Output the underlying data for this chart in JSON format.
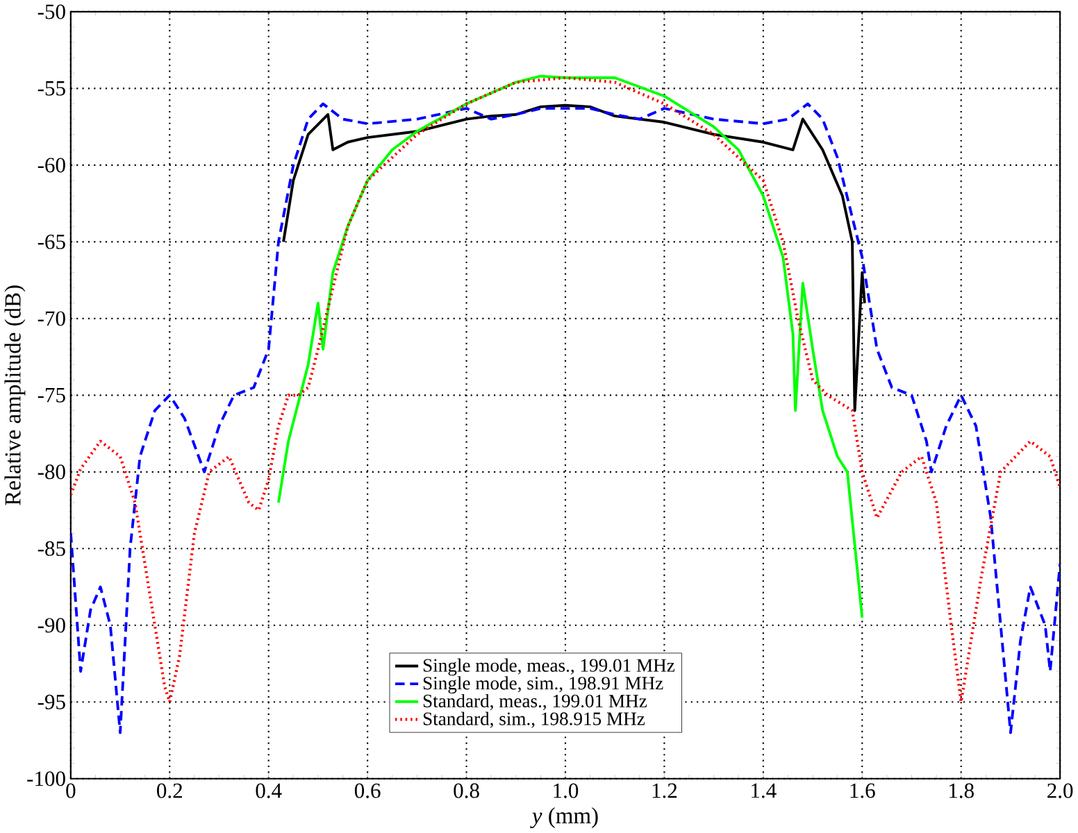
{
  "chart_data": {
    "type": "line",
    "xlabel": "*y* (mm)",
    "ylabel": "Relative amplitude (dB)",
    "xlim": [
      0,
      2.0
    ],
    "ylim": [
      -100,
      -50
    ],
    "xticks": [
      0,
      {
        "value": 0.2,
        "label": "0.2"
      },
      {
        "value": 0.4,
        "label": "0.4"
      },
      {
        "value": 0.6,
        "label": "0.6"
      },
      {
        "value": 0.8,
        "label": "0.8"
      },
      {
        "value": 1.0,
        "label": "1.0"
      },
      {
        "value": 1.2,
        "label": "1.2"
      },
      {
        "value": 1.4,
        "label": "1.4"
      },
      {
        "value": 1.6,
        "label": "1.6"
      },
      {
        "value": 1.8,
        "label": "1.8"
      },
      {
        "value": 2.0,
        "label": "2.0"
      }
    ],
    "yticks": [
      -100,
      -95,
      -90,
      -85,
      -80,
      -75,
      -70,
      -65,
      -60,
      -55,
      -50
    ],
    "grid": true,
    "legend": "bottom",
    "marker": "none",
    "series": [
      {
        "name": "Single mode, meas., 199.01 MHz",
        "color": "#000000",
        "line_style": "solid",
        "x": [
          0.43,
          0.45,
          0.48,
          0.52,
          0.53,
          0.56,
          0.6,
          0.7,
          0.8,
          0.85,
          0.9,
          0.95,
          1.0,
          1.05,
          1.1,
          1.2,
          1.3,
          1.4,
          1.46,
          1.48,
          1.52,
          1.56,
          1.58,
          1.585,
          1.6,
          1.605
        ],
        "values": [
          -65,
          -61,
          -58,
          -56.7,
          -59,
          -58.5,
          -58.2,
          -57.8,
          -57,
          -56.8,
          -56.7,
          -56.2,
          -56.1,
          -56.2,
          -56.8,
          -57.2,
          -58,
          -58.5,
          -59,
          -57,
          -59,
          -62,
          -65,
          -76,
          -67,
          -69
        ]
      },
      {
        "name": "Single mode, sim., 198.91 MHz",
        "color": "#0000ff",
        "line_style": "dashed",
        "x": [
          0,
          0.02,
          0.04,
          0.06,
          0.08,
          0.1,
          0.12,
          0.14,
          0.17,
          0.2,
          0.23,
          0.27,
          0.3,
          0.33,
          0.37,
          0.4,
          0.42,
          0.45,
          0.48,
          0.51,
          0.55,
          0.6,
          0.7,
          0.8,
          0.85,
          0.9,
          0.95,
          1.0,
          1.05,
          1.1,
          1.15,
          1.2,
          1.3,
          1.4,
          1.45,
          1.49,
          1.52,
          1.55,
          1.6,
          1.63,
          1.66,
          1.7,
          1.73,
          1.74,
          1.77,
          1.8,
          1.83,
          1.86,
          1.9,
          1.92,
          1.94,
          1.97,
          1.98,
          2.0
        ],
        "values": [
          -84,
          -93,
          -89,
          -87.5,
          -90,
          -97,
          -85,
          -79,
          -76,
          -75,
          -76.5,
          -80,
          -77,
          -75,
          -74.5,
          -72,
          -65,
          -60,
          -57,
          -56,
          -57,
          -57.3,
          -57,
          -56.3,
          -57,
          -56.7,
          -56.3,
          -56.3,
          -56.3,
          -56.7,
          -57,
          -56.3,
          -57,
          -57.3,
          -57,
          -56,
          -57,
          -59.5,
          -66,
          -72,
          -74.5,
          -75,
          -78,
          -80,
          -77,
          -75,
          -77,
          -83,
          -97,
          -91,
          -87.5,
          -90,
          -93,
          -86
        ]
      },
      {
        "name": "Standard, meas., 199.01 MHz",
        "color": "#00ff00",
        "line_style": "solid",
        "x": [
          0.42,
          0.44,
          0.48,
          0.5,
          0.51,
          0.53,
          0.56,
          0.6,
          0.65,
          0.7,
          0.8,
          0.9,
          0.95,
          1.0,
          1.05,
          1.1,
          1.2,
          1.3,
          1.35,
          1.4,
          1.44,
          1.46,
          1.465,
          1.48,
          1.5,
          1.52,
          1.55,
          1.57,
          1.6
        ],
        "values": [
          -82,
          -78,
          -73,
          -69,
          -72,
          -67,
          -64,
          -61,
          -59,
          -57.8,
          -56,
          -54.6,
          -54.2,
          -54.3,
          -54.3,
          -54.3,
          -55.5,
          -57.5,
          -59,
          -62,
          -66,
          -71,
          -76,
          -67.7,
          -72,
          -76,
          -79,
          -80,
          -89.5
        ]
      },
      {
        "name": "Standard, sim., 198.915 MHz",
        "color": "#ff0000",
        "line_style": "dotted",
        "x": [
          0,
          0.02,
          0.06,
          0.1,
          0.13,
          0.16,
          0.19,
          0.2,
          0.22,
          0.25,
          0.28,
          0.32,
          0.36,
          0.38,
          0.4,
          0.42,
          0.44,
          0.46,
          0.48,
          0.5,
          0.53,
          0.56,
          0.6,
          0.7,
          0.8,
          0.9,
          1.0,
          1.1,
          1.2,
          1.3,
          1.4,
          1.44,
          1.47,
          1.5,
          1.53,
          1.58,
          1.6,
          1.63,
          1.68,
          1.72,
          1.75,
          1.78,
          1.8,
          1.84,
          1.88,
          1.94,
          1.98,
          2.0
        ],
        "values": [
          -81.5,
          -79.8,
          -78,
          -79,
          -82,
          -88,
          -94,
          -95,
          -92,
          -84,
          -80,
          -79,
          -82,
          -82.5,
          -80.5,
          -77,
          -75,
          -75,
          -74.5,
          -72,
          -68,
          -64,
          -61,
          -58,
          -56,
          -54.6,
          -54.3,
          -54.6,
          -56,
          -58,
          -61,
          -65,
          -70,
          -74,
          -75,
          -76,
          -80,
          -83,
          -80,
          -79,
          -82,
          -90,
          -95,
          -87,
          -80,
          -78,
          -79,
          -81
        ]
      }
    ]
  }
}
